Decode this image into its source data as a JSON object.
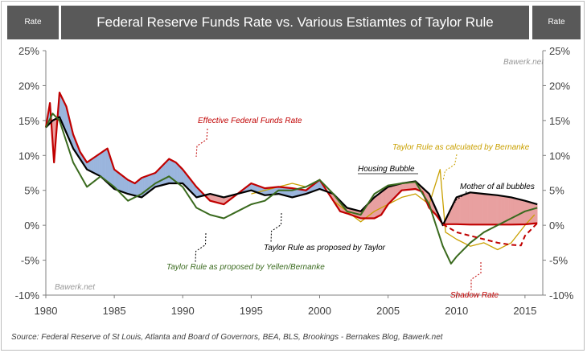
{
  "header": {
    "left_label": "Rate",
    "title": "Federal Reserve Funds Rate vs. Various Estiamtes of Taylor Rule",
    "right_label": "Rate"
  },
  "watermarks": {
    "top_right": "Bawerk.net",
    "bottom_left": "Bawerk.net"
  },
  "source": "Source: Federal Reserve of St Louis, Atlanta and Board of Governors, BEA, BLS,  Brookings  - Bernakes Blog, Bawerk.net",
  "colors": {
    "fed_funds": "#c00000",
    "taylor": "#000000",
    "yellen": "#3a6a1e",
    "bernanke": "#c9a000",
    "shadow": "#c00000",
    "fill_above": "#e8a0a0",
    "fill_below": "#9ab5dd"
  },
  "chart_data": {
    "type": "line",
    "x_ticks": [
      "1980",
      "1985",
      "1990",
      "1995",
      "2000",
      "2005",
      "2010",
      "2015"
    ],
    "y_ticks": [
      "25%",
      "20%",
      "15%",
      "10%",
      "5%",
      "0%",
      "-5%",
      "-10%"
    ],
    "y_ticks_right": [
      "25%",
      "20%",
      "15%",
      "10%",
      "5%",
      "0%",
      "-5%",
      "-10%"
    ],
    "xlim": [
      1980,
      2016.3
    ],
    "ylim": [
      -10,
      25
    ],
    "annotations": {
      "fed_funds": "Effective Federal Funds Rate",
      "taylor": "Taylor Rule as proposed by Taylor",
      "yellen": "Taylor Rule as proposed by Yellen/Bernanke",
      "bernanke": "Taylor Rule as calculated by Bernanke",
      "housing": "Housing Bubble",
      "mother": "Mother of all bubbles",
      "shadow": "Shadow Rate"
    },
    "series": [
      {
        "key": "fed_funds",
        "x": [
          1980,
          1980.3,
          1980.6,
          1981,
          1981.5,
          1982,
          1982.5,
          1983,
          1984.5,
          1985,
          1986,
          1986.5,
          1987,
          1988,
          1989,
          1989.5,
          1990,
          1991,
          1992,
          1993,
          1994,
          1995,
          1996,
          1997,
          1998,
          1999,
          2000,
          2001,
          2001.5,
          2002,
          2003,
          2004,
          2004.5,
          2005,
          2006,
          2007,
          2007.5,
          2008,
          2008.5,
          2009,
          2010,
          2011,
          2012,
          2013,
          2014,
          2015,
          2015.9
        ],
        "values": [
          14,
          17.5,
          9,
          19,
          17,
          13,
          10.5,
          9,
          11,
          8,
          6.5,
          6,
          6.8,
          7.5,
          9.5,
          9,
          8,
          5.5,
          3.5,
          3,
          4.5,
          6,
          5.3,
          5.5,
          5.3,
          5,
          6.5,
          3.5,
          2,
          1.7,
          1,
          1,
          1.5,
          3,
          5,
          5.2,
          4.8,
          2.5,
          1.5,
          0.15,
          0.15,
          0.1,
          0.1,
          0.1,
          0.1,
          0.13,
          0.3
        ]
      },
      {
        "key": "taylor",
        "x": [
          1980,
          1980.5,
          1981,
          1982,
          1983,
          1984,
          1985,
          1986,
          1987,
          1988,
          1989,
          1990,
          1991,
          1992,
          1993,
          1994,
          1995,
          1996,
          1997,
          1998,
          1999,
          2000,
          2001,
          2002,
          2003,
          2004,
          2005,
          2006,
          2007,
          2008,
          2008.8,
          2009,
          2010,
          2011,
          2012,
          2013,
          2014,
          2015,
          2015.9
        ],
        "values": [
          14,
          15,
          15.5,
          11,
          8,
          7,
          5.2,
          4.5,
          4,
          5.5,
          6,
          6,
          4,
          4.5,
          4,
          4.5,
          5,
          4.3,
          4.5,
          4,
          4.5,
          5.2,
          4.5,
          2.5,
          2,
          4,
          5.5,
          6,
          6.3,
          4.5,
          1,
          0,
          4,
          4.7,
          4.5,
          4.3,
          4,
          3.5,
          3
        ]
      },
      {
        "key": "yellen",
        "x": [
          1980,
          1980.5,
          1981,
          1982,
          1983,
          1984,
          1985,
          1986,
          1987,
          1988,
          1989,
          1990,
          1991,
          1992,
          1993,
          1994,
          1995,
          1996,
          1997,
          1998,
          1999,
          2000,
          2001,
          2002,
          2003,
          2004,
          2005,
          2006,
          2007,
          2008,
          2009,
          2009.6,
          2010,
          2011,
          2012,
          2013,
          2014,
          2015,
          2015.9
        ],
        "values": [
          14,
          16,
          15,
          9,
          5.5,
          7,
          5.5,
          3.5,
          4.5,
          6,
          7,
          5.5,
          2.5,
          1.5,
          1,
          2,
          3,
          3.5,
          5,
          5,
          5.5,
          6.5,
          4.5,
          2,
          1.5,
          4.5,
          5.7,
          6,
          6.2,
          3,
          -3,
          -5.5,
          -4.5,
          -2.5,
          -1,
          0,
          1,
          2,
          2.5
        ]
      },
      {
        "key": "bernanke",
        "x": [
          1995,
          1996,
          1997,
          1998,
          1999,
          2000,
          2001,
          2002,
          2003,
          2004,
          2005,
          2006,
          2007,
          2008,
          2008.8,
          2009.2,
          2010,
          2011,
          2012,
          2013,
          2014,
          2015,
          2015.7
        ],
        "values": [
          4.5,
          5,
          5.5,
          6,
          5.5,
          6.5,
          3.5,
          2,
          0.5,
          2,
          3,
          4,
          4.5,
          3,
          8,
          -1,
          -2,
          -3,
          -2.5,
          -3.5,
          -2.5,
          0,
          1.5
        ]
      },
      {
        "key": "shadow",
        "x": [
          2009,
          2010,
          2011,
          2012,
          2013,
          2014,
          2014.7,
          2015,
          2015.9
        ],
        "values": [
          0.15,
          -1,
          -1.5,
          -2,
          -2.5,
          -2.8,
          -2.9,
          -1.5,
          0.3
        ]
      }
    ]
  }
}
